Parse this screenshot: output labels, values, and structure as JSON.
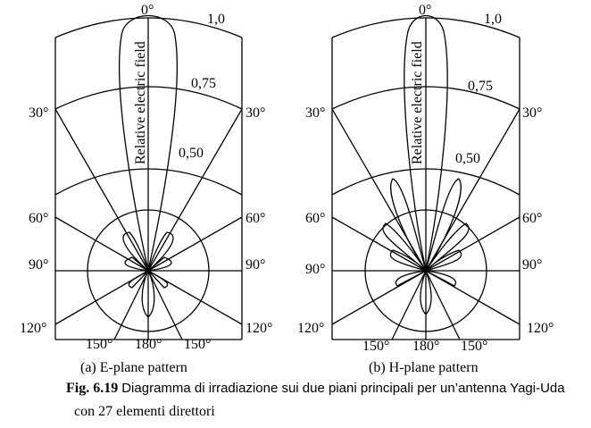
{
  "panels": [
    {
      "id": "a",
      "subtitle": "(a) E-plane pattern",
      "radial_labels": [
        "1,0",
        "0,75",
        "0,50"
      ],
      "radial_values": [
        1.0,
        0.75,
        0.5
      ],
      "angle_labels": {
        "top": "0°",
        "left30": "30°",
        "right30": "30°",
        "left60": "60°",
        "right60": "60°",
        "left90": "90°",
        "right90": "90°",
        "left120": "120°",
        "right120": "120°",
        "left150": "150°",
        "right150": "150°",
        "bottom180": "180°"
      },
      "axis_label": "Relative electric field"
    },
    {
      "id": "b",
      "subtitle": "(b) H-plane pattern",
      "radial_labels": [
        "1,0",
        "0,75",
        "0,50"
      ],
      "radial_values": [
        1.0,
        0.75,
        0.5
      ],
      "angle_labels": {
        "top": "0°",
        "left30": "30°",
        "right30": "30°",
        "left60": "60°",
        "right60": "60°",
        "left90": "90°",
        "right90": "90°",
        "left120": "120°",
        "right120": "120°",
        "left150": "150°",
        "right150": "150°",
        "bottom180": "180°"
      },
      "axis_label": "Relative electric field"
    }
  ],
  "caption": {
    "fig_label": "Fig. 6.19",
    "line1": "Diagramma di irradiazione sui due piani principali per un’antenna Yagi-Uda",
    "line2": "con 27 elementi direttori"
  }
}
